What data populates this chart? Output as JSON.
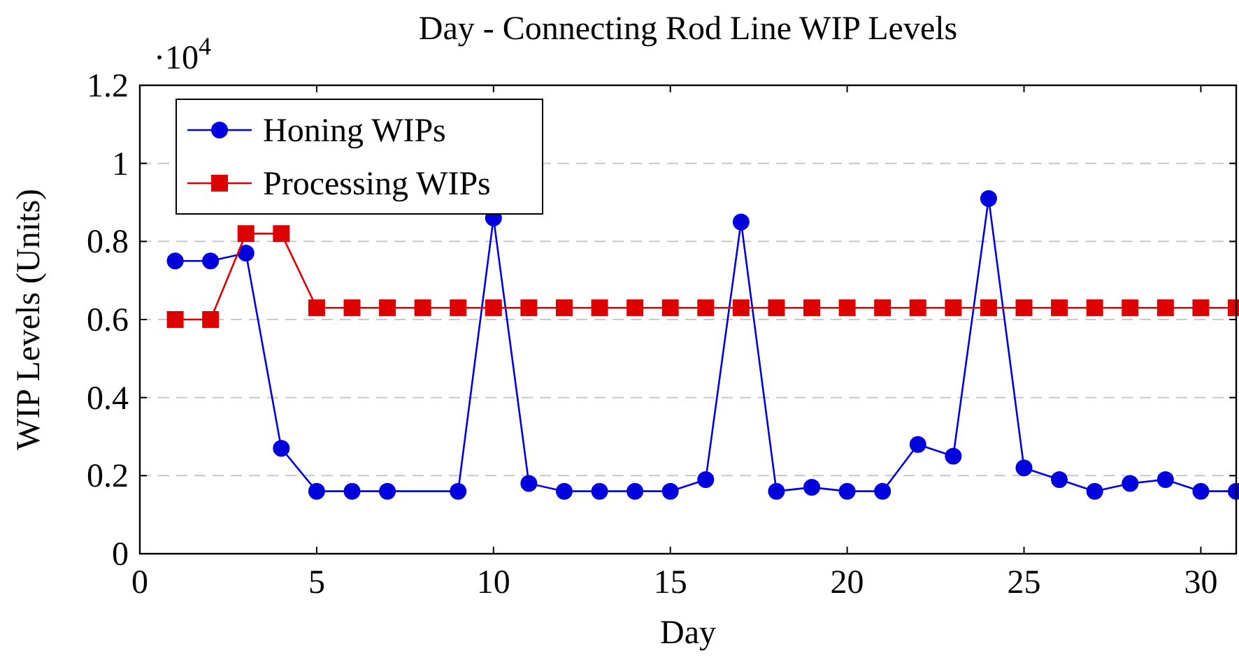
{
  "chart_data": {
    "type": "line",
    "title": "Day - Connecting Rod Line WIP Levels",
    "xlabel": "Day",
    "ylabel": "WIP Levels (Units)",
    "annotations": [
      "·10$^{4}$"
    ],
    "x": [
      1,
      2,
      3,
      4,
      5,
      6,
      7,
      8,
      9,
      10,
      11,
      12,
      13,
      14,
      15,
      16,
      17,
      18,
      19,
      20,
      21,
      22,
      23,
      24,
      25,
      26,
      27,
      28,
      29,
      30,
      31
    ],
    "series": [
      {
        "name": "Honing WIPs",
        "color": "#0000dd",
        "marker": "circle",
        "values": [
          0.75,
          0.75,
          0.77,
          0.27,
          0.16,
          0.16,
          0.16,
          null,
          0.16,
          0.86,
          0.18,
          0.16,
          0.16,
          0.16,
          0.16,
          0.19,
          0.85,
          0.16,
          0.17,
          0.16,
          0.16,
          0.28,
          0.25,
          0.91,
          0.22,
          0.19,
          0.16,
          0.18,
          0.19,
          0.16,
          0.16
        ]
      },
      {
        "name": "Processing WIPs",
        "color": "#dd0000",
        "marker": "square",
        "values": [
          0.6,
          0.6,
          0.82,
          0.82,
          0.63,
          0.63,
          0.63,
          0.63,
          0.63,
          0.63,
          0.63,
          0.63,
          0.63,
          0.63,
          0.63,
          0.63,
          0.63,
          0.63,
          0.63,
          0.63,
          0.63,
          0.63,
          0.63,
          0.63,
          0.63,
          0.63,
          0.63,
          0.63,
          0.63,
          0.63,
          0.63
        ]
      }
    ],
    "xlim": [
      0,
      31
    ],
    "xticks": [
      0,
      5,
      10,
      15,
      20,
      25,
      30
    ],
    "ylim": [
      0,
      1.2
    ],
    "yticks": [
      0,
      0.2,
      0.4,
      0.6,
      0.8,
      1,
      1.2
    ],
    "grid": "y",
    "legend": "top left",
    "line_style": "solid"
  }
}
